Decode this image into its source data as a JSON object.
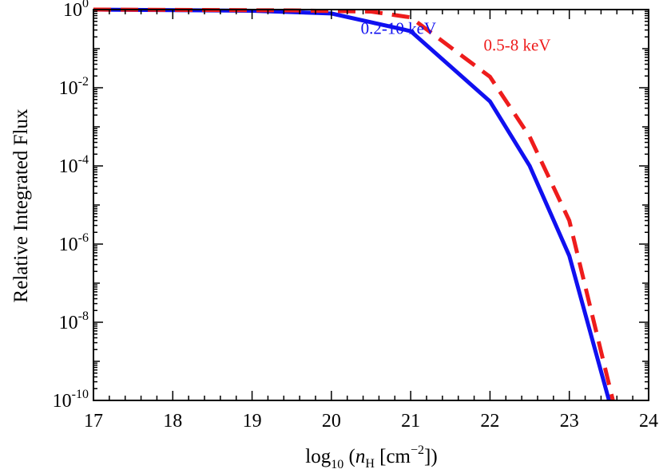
{
  "chart_data": {
    "type": "line",
    "title": "",
    "xlabel": {
      "prefix": "log",
      "prefix_sub": "10",
      "open": " (",
      "var": "n",
      "var_sub": "H",
      "mid": " [cm",
      "sup": "−2",
      "close": "])"
    },
    "ylabel": "Relative Integrated Flux",
    "xlim": [
      17,
      24
    ],
    "ylim_log10": [
      -10,
      0
    ],
    "yscale": "log",
    "x_ticks": [
      17,
      18,
      19,
      20,
      21,
      22,
      23,
      24
    ],
    "x_tick_labels": [
      "17",
      "18",
      "19",
      "20",
      "21",
      "22",
      "23",
      "24"
    ],
    "y_ticks": [
      {
        "base": "10",
        "exp": "0",
        "log10": 0
      },
      {
        "base": "10",
        "exp": "-2",
        "log10": -2
      },
      {
        "base": "10",
        "exp": "-4",
        "log10": -4
      },
      {
        "base": "10",
        "exp": "-6",
        "log10": -6
      },
      {
        "base": "10",
        "exp": "-8",
        "log10": -8
      },
      {
        "base": "10",
        "exp": "-10",
        "log10": -10
      }
    ],
    "grid": false,
    "series": [
      {
        "name": "0.2-10 keV",
        "color": "#1010f0",
        "style": "solid",
        "x": [
          17,
          19,
          20,
          21,
          22,
          22.5,
          23,
          23.5
        ],
        "log10_y": [
          0,
          -0.03,
          -0.1,
          -0.55,
          -2.35,
          -4.0,
          -6.3,
          -10.0
        ]
      },
      {
        "name": "0.5-8 keV",
        "color": "#ee1c1c",
        "style": "dashed",
        "x": [
          17,
          19.5,
          20.5,
          21,
          22,
          22.5,
          23,
          23.55
        ],
        "log10_y": [
          0,
          -0.02,
          -0.05,
          -0.2,
          -1.72,
          -3.25,
          -5.4,
          -10.0
        ]
      }
    ]
  }
}
